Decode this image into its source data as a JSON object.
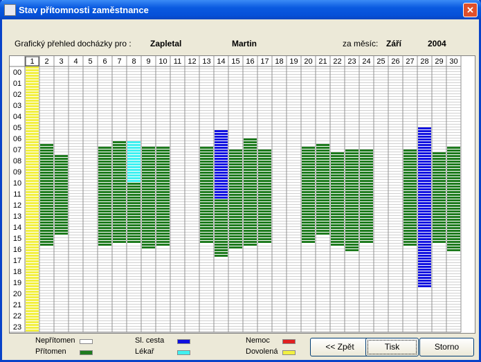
{
  "window": {
    "title": "Stav přítomnosti zaměstnance"
  },
  "header": {
    "caption": "Grafický přehled docházky pro :",
    "surname": "Zapletal",
    "firstname": "Martin",
    "month_caption": "za měsíc:",
    "month": "Září",
    "year": "2004"
  },
  "grid": {
    "columns": [
      "1",
      "2",
      "3",
      "4",
      "5",
      "6",
      "7",
      "8",
      "9",
      "10",
      "11",
      "12",
      "13",
      "14",
      "15",
      "16",
      "17",
      "18",
      "19",
      "20",
      "21",
      "22",
      "23",
      "24",
      "25",
      "26",
      "27",
      "28",
      "29",
      "30"
    ],
    "rows": [
      "00",
      "01",
      "02",
      "03",
      "04",
      "05",
      "06",
      "07",
      "08",
      "09",
      "10",
      "11",
      "12",
      "13",
      "14",
      "15",
      "16",
      "17",
      "18",
      "19",
      "20",
      "21",
      "22",
      "23"
    ],
    "days": [
      {
        "segments": [
          {
            "from": 0,
            "to": 24,
            "color": "#f2f040"
          }
        ]
      },
      {
        "segments": [
          {
            "from": 7,
            "to": 16.25,
            "color": "#1e7b1e"
          }
        ]
      },
      {
        "segments": [
          {
            "from": 8,
            "to": 15.25,
            "color": "#1e7b1e"
          }
        ]
      },
      {
        "segments": []
      },
      {
        "segments": []
      },
      {
        "segments": [
          {
            "from": 7.25,
            "to": 16.25,
            "color": "#1e7b1e"
          }
        ]
      },
      {
        "segments": [
          {
            "from": 6.75,
            "to": 16,
            "color": "#1e7b1e"
          }
        ]
      },
      {
        "segments": [
          {
            "from": 6.75,
            "to": 10.5,
            "color": "#40f0f0"
          },
          {
            "from": 10.5,
            "to": 16,
            "color": "#1e7b1e"
          }
        ]
      },
      {
        "segments": [
          {
            "from": 7.25,
            "to": 16.5,
            "color": "#1e7b1e"
          }
        ]
      },
      {
        "segments": [
          {
            "from": 7.25,
            "to": 16.25,
            "color": "#1e7b1e"
          }
        ]
      },
      {
        "segments": []
      },
      {
        "segments": []
      },
      {
        "segments": [
          {
            "from": 7.25,
            "to": 16,
            "color": "#1e7b1e"
          }
        ]
      },
      {
        "segments": [
          {
            "from": 5.75,
            "to": 12,
            "color": "#1010e0"
          },
          {
            "from": 12,
            "to": 17.25,
            "color": "#1e7b1e"
          }
        ]
      },
      {
        "segments": [
          {
            "from": 7.5,
            "to": 16.5,
            "color": "#1e7b1e"
          }
        ]
      },
      {
        "segments": [
          {
            "from": 6.5,
            "to": 16.25,
            "color": "#1e7b1e"
          }
        ]
      },
      {
        "segments": [
          {
            "from": 7.5,
            "to": 16,
            "color": "#1e7b1e"
          }
        ]
      },
      {
        "segments": []
      },
      {
        "segments": []
      },
      {
        "segments": [
          {
            "from": 7.25,
            "to": 16,
            "color": "#1e7b1e"
          }
        ]
      },
      {
        "segments": [
          {
            "from": 7,
            "to": 15.25,
            "color": "#1e7b1e"
          }
        ]
      },
      {
        "segments": [
          {
            "from": 7.75,
            "to": 16.25,
            "color": "#1e7b1e"
          }
        ]
      },
      {
        "segments": [
          {
            "from": 7.5,
            "to": 16.75,
            "color": "#1e7b1e"
          }
        ]
      },
      {
        "segments": [
          {
            "from": 7.5,
            "to": 16,
            "color": "#1e7b1e"
          }
        ]
      },
      {
        "segments": []
      },
      {
        "segments": []
      },
      {
        "segments": [
          {
            "from": 7.5,
            "to": 16.25,
            "color": "#1e7b1e"
          }
        ]
      },
      {
        "segments": [
          {
            "from": 5.5,
            "to": 20,
            "color": "#1010e0"
          }
        ]
      },
      {
        "segments": [
          {
            "from": 7.75,
            "to": 16,
            "color": "#1e7b1e"
          }
        ]
      },
      {
        "segments": [
          {
            "from": 7.25,
            "to": 16.75,
            "color": "#1e7b1e"
          }
        ]
      }
    ]
  },
  "legend": {
    "items": [
      {
        "label": "Nepřítomen",
        "color": "#ffffff"
      },
      {
        "label": "Přítomen",
        "color": "#1e7b1e"
      },
      {
        "label": "Sl. cesta",
        "color": "#1010e0"
      },
      {
        "label": "Lékař",
        "color": "#40f0f0"
      },
      {
        "label": "Nemoc",
        "color": "#e02020"
      },
      {
        "label": "Dovolená",
        "color": "#f2f040"
      }
    ]
  },
  "buttons": [
    "<< Zpět",
    "Tisk",
    "Storno"
  ]
}
